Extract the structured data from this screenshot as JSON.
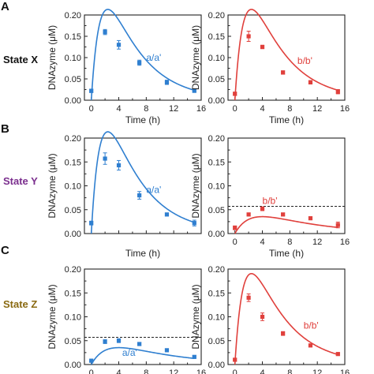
{
  "figure": {
    "row_letters": [
      "A",
      "B",
      "C"
    ],
    "row_labels": [
      {
        "text": "State X",
        "color": "#111111"
      },
      {
        "text": "State Y",
        "color": "#7b2f8e"
      },
      {
        "text": "State Z",
        "color": "#8a6a12"
      }
    ],
    "ylabel": "DNAzyme (μM)",
    "xlabel": "Time (h)",
    "blue_color": "#2f7fd0",
    "red_color": "#e0403c"
  },
  "chart_data": [
    {
      "type": "line",
      "panel": "A-left",
      "color": "blue",
      "series": [
        {
          "name": "a/a'",
          "points": [
            [
              0,
              0.022
            ],
            [
              2,
              0.16
            ],
            [
              4,
              0.13
            ],
            [
              7,
              0.088
            ],
            [
              11,
              0.042
            ],
            [
              15,
              0.022
            ]
          ],
          "err": [
            0.004,
            0.006,
            0.01,
            0.006,
            0.005,
            0.003
          ]
        }
      ],
      "fit": {
        "A": 0.47,
        "kd": 0.2,
        "ka": 0.75
      },
      "xlabel": "Time (h)",
      "ylabel": "DNAzyme (μM)",
      "xlim": [
        -1,
        16
      ],
      "ylim": [
        0,
        0.2
      ],
      "xticks": [
        0,
        4,
        8,
        12,
        16
      ],
      "yticks": [
        0.0,
        0.05,
        0.1,
        0.15,
        0.2
      ],
      "show_xlabel": true,
      "show_xticks": true,
      "label_pos": [
        8,
        0.093
      ]
    },
    {
      "type": "line",
      "panel": "A-right",
      "color": "red",
      "series": [
        {
          "name": "b/b'",
          "points": [
            [
              0,
              0.015
            ],
            [
              2,
              0.15
            ],
            [
              4,
              0.125
            ],
            [
              7,
              0.065
            ],
            [
              11,
              0.042
            ],
            [
              15,
              0.02
            ]
          ],
          "err": [
            0.004,
            0.012,
            0.004,
            0.004,
            0.004,
            0.005
          ]
        }
      ],
      "fit": {
        "A": 0.47,
        "kd": 0.2,
        "ka": 0.75
      },
      "xlabel": "Time (h)",
      "ylabel": "DNAzyme (μM)",
      "xlim": [
        -1,
        16
      ],
      "ylim": [
        0,
        0.2
      ],
      "xticks": [
        0,
        4,
        8,
        12,
        16
      ],
      "yticks": [
        0.0,
        0.05,
        0.1,
        0.15,
        0.2
      ],
      "show_xlabel": true,
      "show_xticks": true,
      "label_pos": [
        9.1,
        0.085
      ]
    },
    {
      "type": "line",
      "panel": "B-left",
      "color": "blue",
      "series": [
        {
          "name": "a/a'",
          "points": [
            [
              0,
              0.022
            ],
            [
              2,
              0.157
            ],
            [
              4,
              0.143
            ],
            [
              7,
              0.08
            ],
            [
              11,
              0.04
            ],
            [
              15,
              0.022
            ]
          ],
          "err": [
            0.004,
            0.012,
            0.01,
            0.008,
            0.003,
            0.006
          ]
        }
      ],
      "fit": {
        "A": 0.47,
        "kd": 0.2,
        "ka": 0.75
      },
      "xlabel": "Time (h)",
      "ylabel": "DNAzyme (μM)",
      "xlim": [
        -1,
        16
      ],
      "ylim": [
        0,
        0.2
      ],
      "xticks": [
        0,
        4,
        8,
        12,
        16
      ],
      "yticks": [
        0.0,
        0.05,
        0.1,
        0.15,
        0.2
      ],
      "show_xlabel": true,
      "show_xticks": false,
      "label_pos": [
        8,
        0.085
      ]
    },
    {
      "type": "line",
      "panel": "B-right",
      "color": "red",
      "series": [
        {
          "name": "b/b'",
          "points": [
            [
              0,
              0.012
            ],
            [
              2,
              0.04
            ],
            [
              4,
              0.052
            ],
            [
              7,
              0.04
            ],
            [
              11,
              0.032
            ],
            [
              15,
              0.018
            ]
          ],
          "err": [
            0.004,
            0.003,
            0.004,
            0.003,
            0.003,
            0.006
          ]
        }
      ],
      "fit": {
        "A": 0.078,
        "kd": 0.12,
        "ka": 0.45
      },
      "threshold": 0.057,
      "xlabel": "Time (h)",
      "ylabel": "DNAzyme (μM)",
      "xlim": [
        -1,
        16
      ],
      "ylim": [
        0,
        0.2
      ],
      "xticks": [
        0,
        4,
        8,
        12,
        16
      ],
      "yticks": [
        0.0,
        0.05,
        0.1,
        0.15,
        0.2
      ],
      "show_xlabel": true,
      "show_xticks": true,
      "label_pos": [
        4,
        0.062
      ]
    },
    {
      "type": "line",
      "panel": "C-left",
      "color": "blue",
      "series": [
        {
          "name": "a/a'",
          "points": [
            [
              0,
              0.008
            ],
            [
              2,
              0.048
            ],
            [
              4,
              0.05
            ],
            [
              7,
              0.043
            ],
            [
              11,
              0.03
            ],
            [
              15,
              0.016
            ]
          ],
          "err": [
            0.003,
            0.004,
            0.004,
            0.003,
            0.002,
            0.002
          ]
        }
      ],
      "fit": {
        "A": 0.078,
        "kd": 0.12,
        "ka": 0.45
      },
      "threshold": 0.057,
      "xlabel": "Time (h)",
      "ylabel": "DNAzyme (μM)",
      "xlim": [
        -1,
        16
      ],
      "ylim": [
        0,
        0.2
      ],
      "xticks": [
        0,
        4,
        8,
        12,
        16
      ],
      "yticks": [
        0.0,
        0.05,
        0.1,
        0.15,
        0.2
      ],
      "show_xlabel": false,
      "show_xticks": true,
      "label_pos": [
        4.5,
        0.018
      ]
    },
    {
      "type": "line",
      "panel": "C-right",
      "color": "red",
      "series": [
        {
          "name": "b/b'",
          "points": [
            [
              0,
              0.01
            ],
            [
              2,
              0.14
            ],
            [
              4,
              0.1
            ],
            [
              7,
              0.065
            ],
            [
              11,
              0.04
            ],
            [
              15,
              0.022
            ]
          ],
          "err": [
            0.003,
            0.008,
            0.008,
            0.004,
            0.003,
            0.002
          ]
        }
      ],
      "fit": {
        "A": 0.42,
        "kd": 0.2,
        "ka": 0.75
      },
      "xlabel": "Time (h)",
      "ylabel": "DNAzyme (μM)",
      "xlim": [
        -1,
        16
      ],
      "ylim": [
        0,
        0.2
      ],
      "xticks": [
        0,
        4,
        8,
        12,
        16
      ],
      "yticks": [
        0.0,
        0.05,
        0.1,
        0.15,
        0.2
      ],
      "show_xlabel": false,
      "show_xticks": true,
      "label_pos": [
        10,
        0.075
      ]
    }
  ]
}
